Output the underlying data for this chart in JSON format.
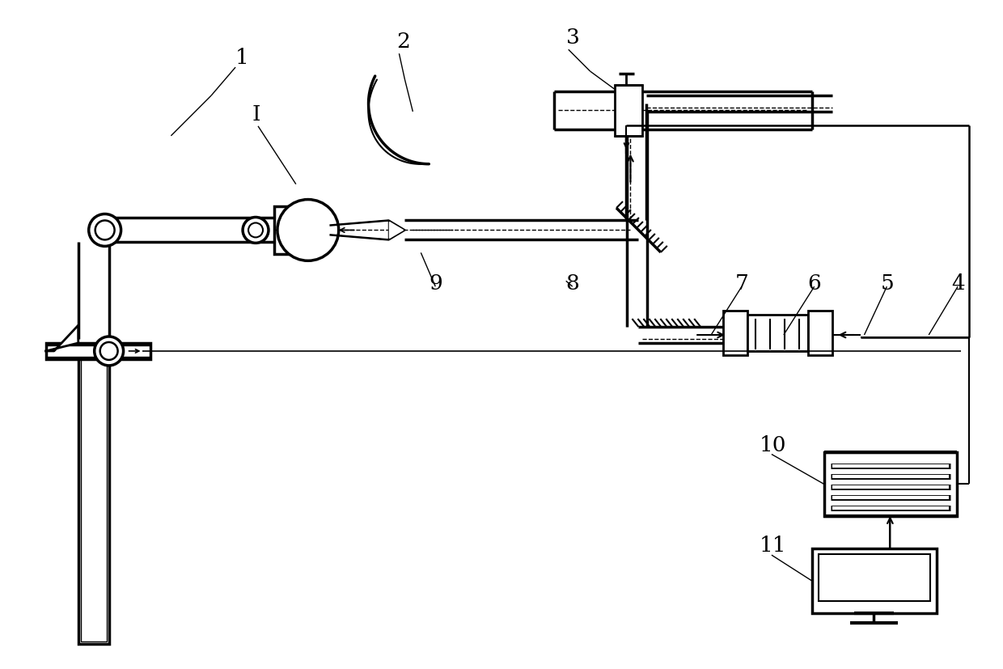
{
  "bg_color": "#ffffff",
  "lc": "black",
  "fig_w": 12.4,
  "fig_h": 8.28,
  "dpi": 100
}
